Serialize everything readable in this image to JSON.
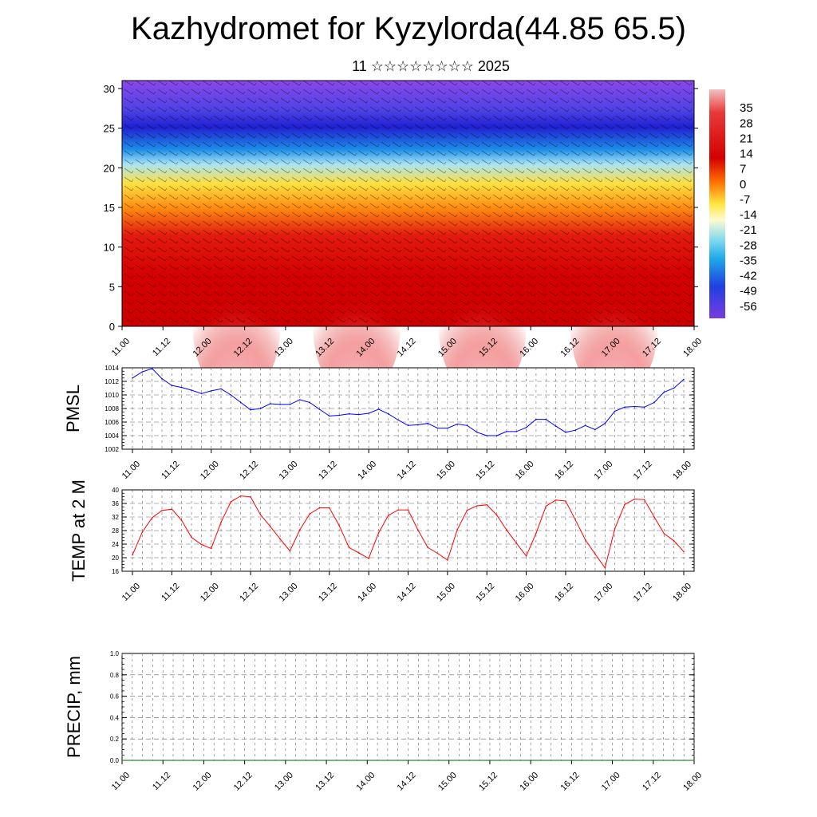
{
  "title": "Kazhydromet for Kyzylorda(44.85 65.5)",
  "subtitle": "11 ☆☆☆☆☆☆☆☆ 2025",
  "colors": {
    "pmsl_line": "#0000ff",
    "temp_line": "#ff0000",
    "precip_line": "#006400"
  },
  "chart_data": [
    {
      "id": "cross-section",
      "type": "heatmap",
      "description_free": true,
      "x_ticks": [
        "11.00",
        "11.12",
        "12.00",
        "12.12",
        "13.00",
        "13.12",
        "14.00",
        "14.12",
        "15.00",
        "15.12",
        "16.00",
        "16.12",
        "17.00",
        "17.12",
        "18.00"
      ],
      "y_ticks": [
        0,
        5,
        10,
        15,
        20,
        25,
        30
      ],
      "ylim": [
        0,
        31
      ],
      "colorbar_labels": [
        "35",
        "28",
        "21",
        "14",
        "7",
        "0",
        "-7",
        "-14",
        "-21",
        "-28",
        "-35",
        "-42",
        "-49",
        "-56"
      ],
      "colorbar_range": [
        -63,
        42
      ],
      "grid": false
    },
    {
      "id": "pmsl",
      "type": "line",
      "ylabel": "PMSL",
      "ylim": [
        1002,
        1014
      ],
      "y_ticks": [
        1002,
        1004,
        1006,
        1008,
        1010,
        1012,
        1014
      ],
      "x_ticks": [
        "11.00",
        "11.12",
        "12.00",
        "12.12",
        "13.00",
        "13.12",
        "14.00",
        "14.12",
        "15.00",
        "15.12",
        "16.00",
        "16.12",
        "17.00",
        "17.12",
        "18.00"
      ],
      "grid": true,
      "series": [
        {
          "x": [
            0,
            3,
            6,
            9,
            12,
            15,
            18,
            21,
            24,
            27,
            30,
            33,
            36,
            39,
            42,
            45,
            48,
            51,
            54,
            57,
            60,
            63,
            66,
            69,
            72,
            75,
            78,
            81,
            84,
            87,
            90,
            93,
            96,
            99,
            102,
            105,
            108,
            111,
            114,
            117,
            120,
            123,
            126,
            129,
            132,
            135,
            138,
            141,
            144,
            147,
            150,
            153,
            156,
            159,
            162,
            165,
            168
          ],
          "values": [
            1012.5,
            1013.4,
            1013.9,
            1012.4,
            1011.4,
            1011.1,
            1010.7,
            1010.2,
            1010.6,
            1010.9,
            1010.0,
            1008.9,
            1007.8,
            1008.0,
            1008.7,
            1008.6,
            1008.6,
            1009.3,
            1008.9,
            1007.9,
            1006.9,
            1007.0,
            1007.2,
            1007.1,
            1007.3,
            1007.9,
            1007.2,
            1006.3,
            1005.5,
            1005.6,
            1005.8,
            1005.1,
            1005.1,
            1005.7,
            1005.5,
            1004.5,
            1004.0,
            1004.0,
            1004.6,
            1004.6,
            1005.2,
            1006.4,
            1006.4,
            1005.4,
            1004.5,
            1004.8,
            1005.5,
            1004.9,
            1005.8,
            1007.6,
            1008.2,
            1008.3,
            1008.2,
            1008.9,
            1010.4,
            1011.0,
            1012.3
          ]
        }
      ]
    },
    {
      "id": "temp",
      "type": "line",
      "ylabel": "TEMP at 2 M",
      "ylim": [
        16,
        40
      ],
      "y_ticks": [
        16,
        20,
        24,
        28,
        32,
        36,
        40
      ],
      "x_ticks": [
        "11.00",
        "11.12",
        "12.00",
        "12.12",
        "13.00",
        "13.12",
        "14.00",
        "14.12",
        "15.00",
        "15.12",
        "16.00",
        "16.12",
        "17.00",
        "17.12",
        "18.00"
      ],
      "grid": true,
      "series": [
        {
          "x": [
            0,
            3,
            6,
            9,
            12,
            15,
            18,
            21,
            24,
            27,
            30,
            33,
            36,
            39,
            42,
            45,
            48,
            51,
            54,
            57,
            60,
            63,
            66,
            69,
            72,
            75,
            78,
            81,
            84,
            87,
            90,
            93,
            96,
            99,
            102,
            105,
            108,
            111,
            114,
            117,
            120,
            123,
            126,
            129,
            132,
            135,
            138,
            141,
            144,
            147,
            150,
            153,
            156,
            159,
            162,
            165,
            168
          ],
          "values": [
            20.8,
            27.5,
            31.8,
            33.9,
            34.3,
            31.0,
            26.0,
            23.9,
            22.7,
            30.5,
            36.5,
            38.2,
            37.9,
            32.7,
            29.2,
            25.5,
            22.0,
            28.2,
            32.9,
            34.7,
            34.7,
            29.5,
            23.0,
            21.4,
            19.8,
            27.3,
            32.5,
            34.1,
            34.1,
            28.2,
            23.0,
            21.3,
            19.3,
            28.3,
            34.0,
            35.3,
            35.6,
            32.6,
            28.2,
            24.3,
            20.5,
            27.2,
            35.2,
            37.0,
            36.7,
            31.1,
            25.3,
            21.1,
            17.0,
            28.6,
            35.7,
            37.3,
            37.1,
            32.0,
            27.1,
            25.0,
            21.8
          ]
        }
      ]
    },
    {
      "id": "precip",
      "type": "line",
      "ylabel": "PRECIP, mm",
      "ylim": [
        0.0,
        1.0
      ],
      "y_ticks": [
        "0.0",
        "0.2",
        "0.4",
        "0.6",
        "0.8",
        "1.0"
      ],
      "x_ticks": [
        "11.00",
        "11.12",
        "12.00",
        "12.12",
        "13.00",
        "13.12",
        "14.00",
        "14.12",
        "15.00",
        "15.12",
        "16.00",
        "16.12",
        "17.00",
        "17.12",
        "18.00"
      ],
      "grid": true,
      "series": [
        {
          "x": [
            0,
            168
          ],
          "values": [
            0.0,
            0.0
          ]
        }
      ]
    }
  ]
}
